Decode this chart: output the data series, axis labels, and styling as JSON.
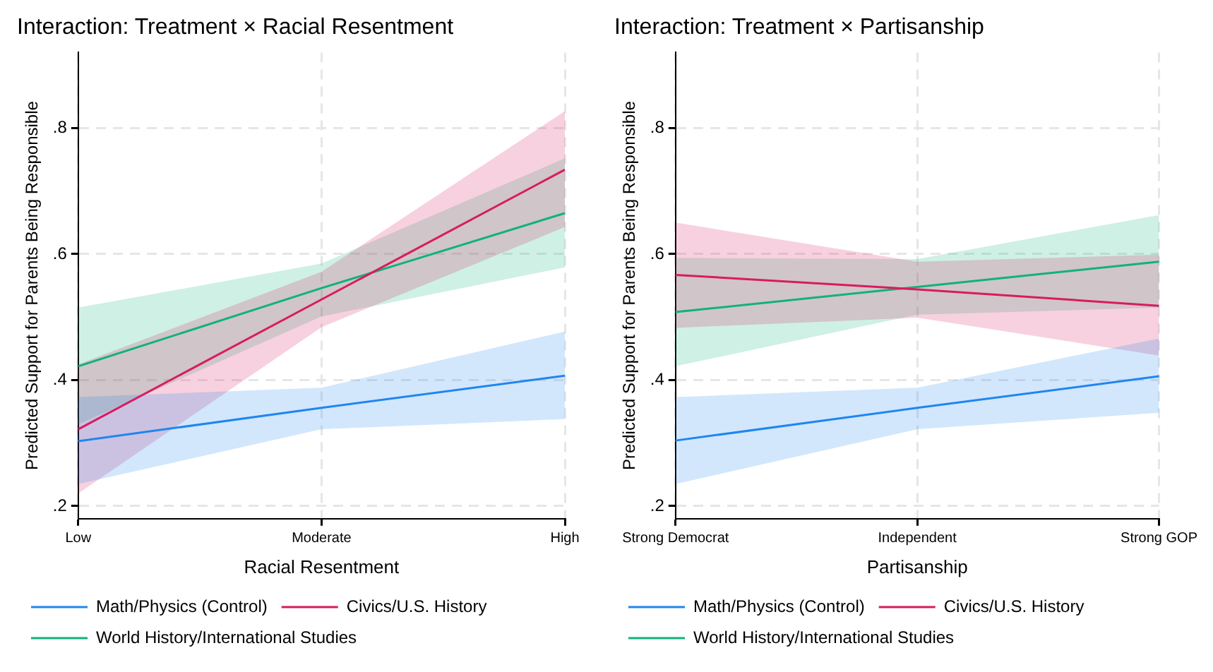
{
  "chart_data": [
    {
      "type": "line",
      "title": "Interaction: Treatment × Racial Resentment",
      "xlabel": "Racial Resentment",
      "ylabel": "Predicted Support for Parents Being Responsible",
      "categories": [
        "Low",
        "Moderate",
        "High"
      ],
      "ylim": [
        0.18,
        0.92
      ],
      "yticks": [
        {
          "value": 0.2,
          "label": ".2"
        },
        {
          "value": 0.4,
          "label": ".4"
        },
        {
          "value": 0.6,
          "label": ".6"
        },
        {
          "value": 0.8,
          "label": ".8"
        }
      ],
      "grid": true,
      "legend": "bottom",
      "marker": "none",
      "line_style": "solid",
      "series": [
        {
          "name": "Math/Physics (Control)",
          "color": "#1f86f0",
          "values": [
            0.303,
            0.356,
            0.407
          ],
          "lower": [
            0.235,
            0.322,
            0.338
          ],
          "upper": [
            0.373,
            0.388,
            0.477
          ]
        },
        {
          "name": "Civics/U.S. History",
          "color": "#d81b60",
          "values": [
            0.322,
            0.528,
            0.734
          ],
          "lower": [
            0.22,
            0.484,
            0.643
          ],
          "upper": [
            0.425,
            0.572,
            0.827
          ]
        },
        {
          "name": "World History/International Studies",
          "color": "#10b27a",
          "values": [
            0.422,
            0.546,
            0.665
          ],
          "lower": [
            0.33,
            0.501,
            0.579
          ],
          "upper": [
            0.515,
            0.585,
            0.752
          ]
        }
      ]
    },
    {
      "type": "line",
      "title": "Interaction: Treatment × Partisanship",
      "xlabel": "Partisanship",
      "ylabel": "Predicted Support for Parents Being Responsible",
      "categories": [
        "Strong Democrat",
        "Independent",
        "Strong GOP"
      ],
      "ylim": [
        0.18,
        0.92
      ],
      "yticks": [
        {
          "value": 0.2,
          "label": ".2"
        },
        {
          "value": 0.4,
          "label": ".4"
        },
        {
          "value": 0.6,
          "label": ".6"
        },
        {
          "value": 0.8,
          "label": ".8"
        }
      ],
      "grid": true,
      "legend": "bottom",
      "marker": "none",
      "line_style": "solid",
      "series": [
        {
          "name": "Math/Physics (Control)",
          "color": "#1f86f0",
          "values": [
            0.304,
            0.356,
            0.406
          ],
          "lower": [
            0.235,
            0.322,
            0.348
          ],
          "upper": [
            0.373,
            0.388,
            0.466
          ]
        },
        {
          "name": "Civics/U.S. History",
          "color": "#d81b60",
          "values": [
            0.567,
            0.544,
            0.518
          ],
          "lower": [
            0.483,
            0.499,
            0.439
          ],
          "upper": [
            0.65,
            0.588,
            0.599
          ]
        },
        {
          "name": "World History/International Studies",
          "color": "#10b27a",
          "values": [
            0.508,
            0.548,
            0.588
          ],
          "lower": [
            0.422,
            0.504,
            0.515
          ],
          "upper": [
            0.594,
            0.592,
            0.662
          ]
        }
      ]
    }
  ]
}
